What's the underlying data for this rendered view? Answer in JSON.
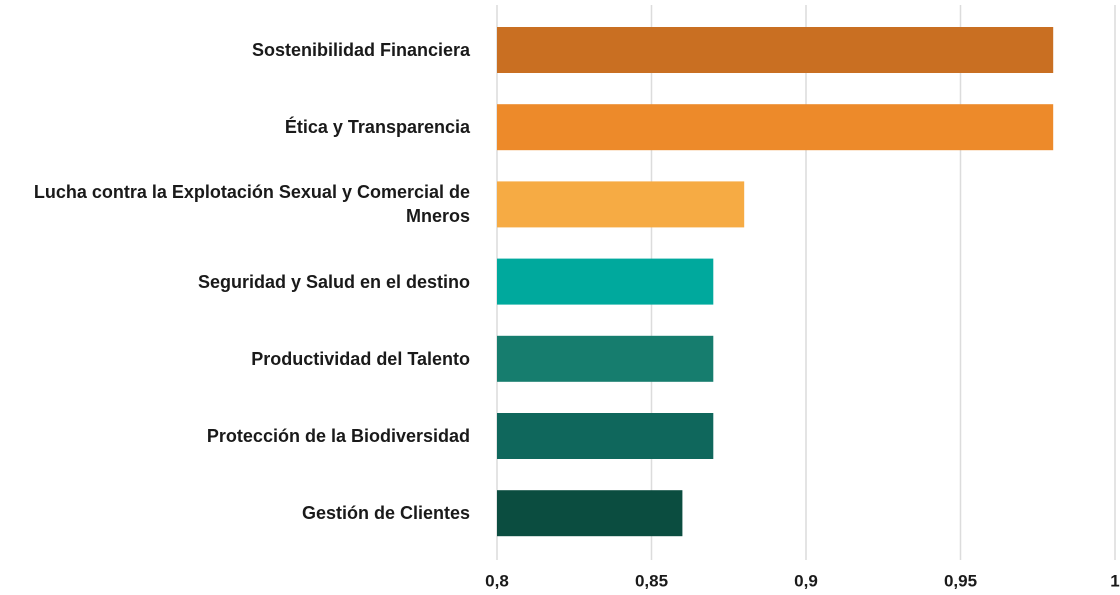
{
  "chart_data": {
    "type": "bar",
    "orientation": "horizontal",
    "categories": [
      "Sostenibilidad Financiera",
      "Ética y Transparencia",
      "Lucha contra la Explotación Sexual y Comercial de Mneros",
      "Seguridad y Salud en el destino",
      "Productividad del Talento",
      "Protección de la Biodiversidad",
      "Gestión de Clientes"
    ],
    "values": [
      0.98,
      0.98,
      0.88,
      0.87,
      0.87,
      0.87,
      0.86
    ],
    "colors": [
      "#c96f22",
      "#ed8a2a",
      "#f6ab44",
      "#00a99d",
      "#167d6e",
      "#0f675c",
      "#0b4d40"
    ],
    "xlim": [
      0.8,
      1
    ],
    "xticks": [
      {
        "value": 0.8,
        "label": "0,8"
      },
      {
        "value": 0.85,
        "label": "0,85"
      },
      {
        "value": 0.9,
        "label": "0,9"
      },
      {
        "value": 0.95,
        "label": "0,95"
      },
      1
    ],
    "grid": true
  }
}
